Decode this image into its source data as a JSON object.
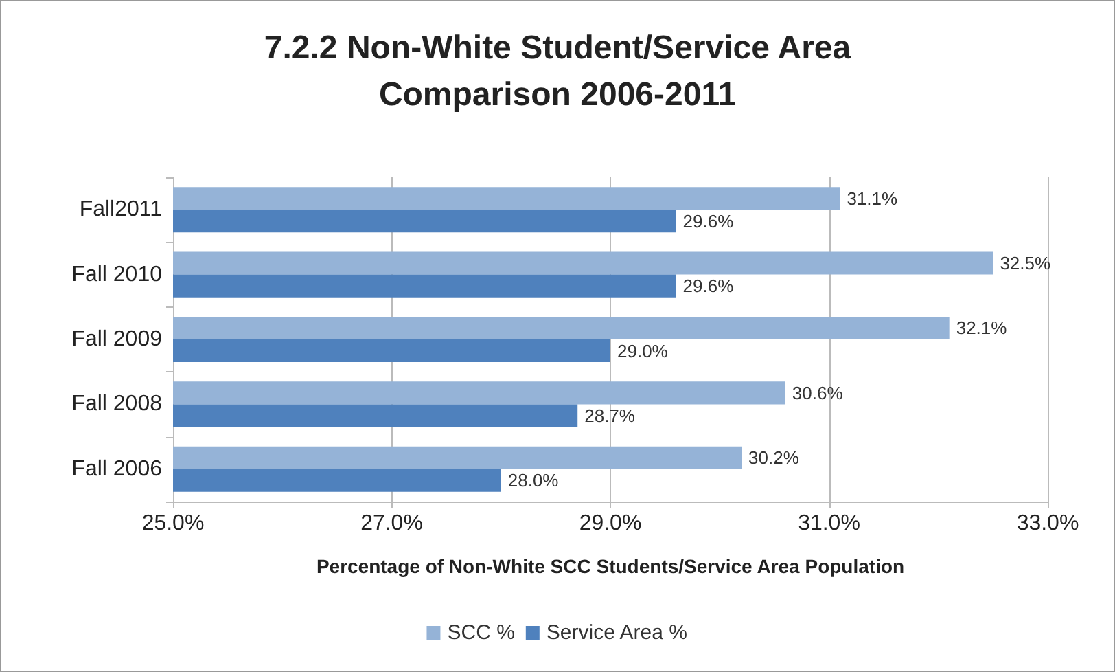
{
  "chart_data": {
    "type": "bar",
    "orientation": "horizontal",
    "title": "7.2.2 Non-White Student/Service Area\nComparison 2006-2011",
    "xlabel": "Percentage of Non-White SCC Students/Service Area Population",
    "categories": [
      "Fall2011",
      "Fall 2010",
      "Fall 2009",
      "Fall 2008",
      "Fall 2006"
    ],
    "series": [
      {
        "name": "SCC %",
        "color": "#95b3d7",
        "values": [
          31.1,
          32.5,
          32.1,
          30.6,
          30.2
        ],
        "value_labels": [
          "31.1%",
          "32.5%",
          "32.1%",
          "30.6%",
          "30.2%"
        ]
      },
      {
        "name": "Service Area %",
        "color": "#4f81bd",
        "values": [
          29.6,
          29.6,
          29.0,
          28.7,
          28.0
        ],
        "value_labels": [
          "29.6%",
          "29.6%",
          "29.0%",
          "28.7%",
          "28.0%"
        ]
      }
    ],
    "xlim": [
      25,
      33
    ],
    "xticks": [
      {
        "value": 25,
        "label": "25.0%"
      },
      {
        "value": 27,
        "label": "27.0%"
      },
      {
        "value": 29,
        "label": "29.0%"
      },
      {
        "value": 31,
        "label": "31.0%"
      },
      {
        "value": 33,
        "label": "33.0%"
      }
    ],
    "grid": "x",
    "legend": "bottom"
  }
}
